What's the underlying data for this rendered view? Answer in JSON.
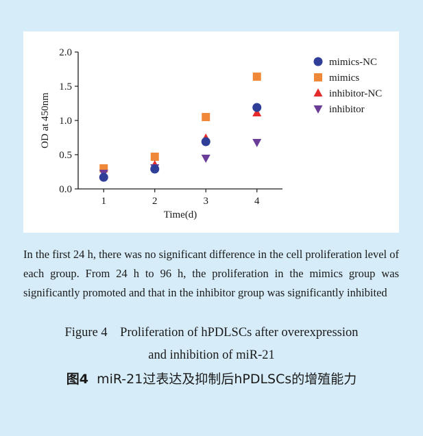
{
  "chart_data": {
    "type": "scatter",
    "xlabel": "Time(d)",
    "ylabel": "OD at 450nm",
    "x_ticks": [
      "1",
      "2",
      "3",
      "4"
    ],
    "y_ticks": [
      "0.0",
      "0.5",
      "1.0",
      "1.5",
      "2.0"
    ],
    "xlim": [
      0.5,
      4.5
    ],
    "ylim": [
      0,
      2.0
    ],
    "legend_position": "right",
    "series": [
      {
        "name": "mimics-NC",
        "marker": "circle",
        "color": "#2f3f98",
        "x": [
          1,
          2,
          3,
          4
        ],
        "y": [
          0.17,
          0.29,
          0.69,
          1.19
        ]
      },
      {
        "name": "mimics",
        "marker": "square",
        "color": "#f0883a",
        "x": [
          1,
          2,
          3,
          4
        ],
        "y": [
          0.3,
          0.47,
          1.05,
          1.64
        ]
      },
      {
        "name": "inhibitor-NC",
        "marker": "triangle-up",
        "color": "#e52b2b",
        "x": [
          1,
          2,
          3,
          4
        ],
        "y": [
          0.2,
          0.35,
          0.74,
          1.11
        ]
      },
      {
        "name": "inhibitor",
        "marker": "triangle-down",
        "color": "#6a3d98",
        "x": [
          1,
          2,
          3,
          4
        ],
        "y": [
          0.23,
          0.31,
          0.45,
          0.68
        ]
      }
    ]
  },
  "caption": "In the first 24 h, there was no significant difference in the cell proliferation level of each group. From 24 h to 96 h, the proliferation in the mimics group was significantly promoted and that in the inhibitor group was significantly inhibited",
  "figure_en": {
    "line1": "Figure 4    Proliferation of hPDLSCs after overexpression",
    "line2": "and inhibition of miR-21"
  },
  "figure_zh": {
    "label": "图4",
    "text": "miR-21过表达及抑制后hPDLSCs的增殖能力"
  }
}
